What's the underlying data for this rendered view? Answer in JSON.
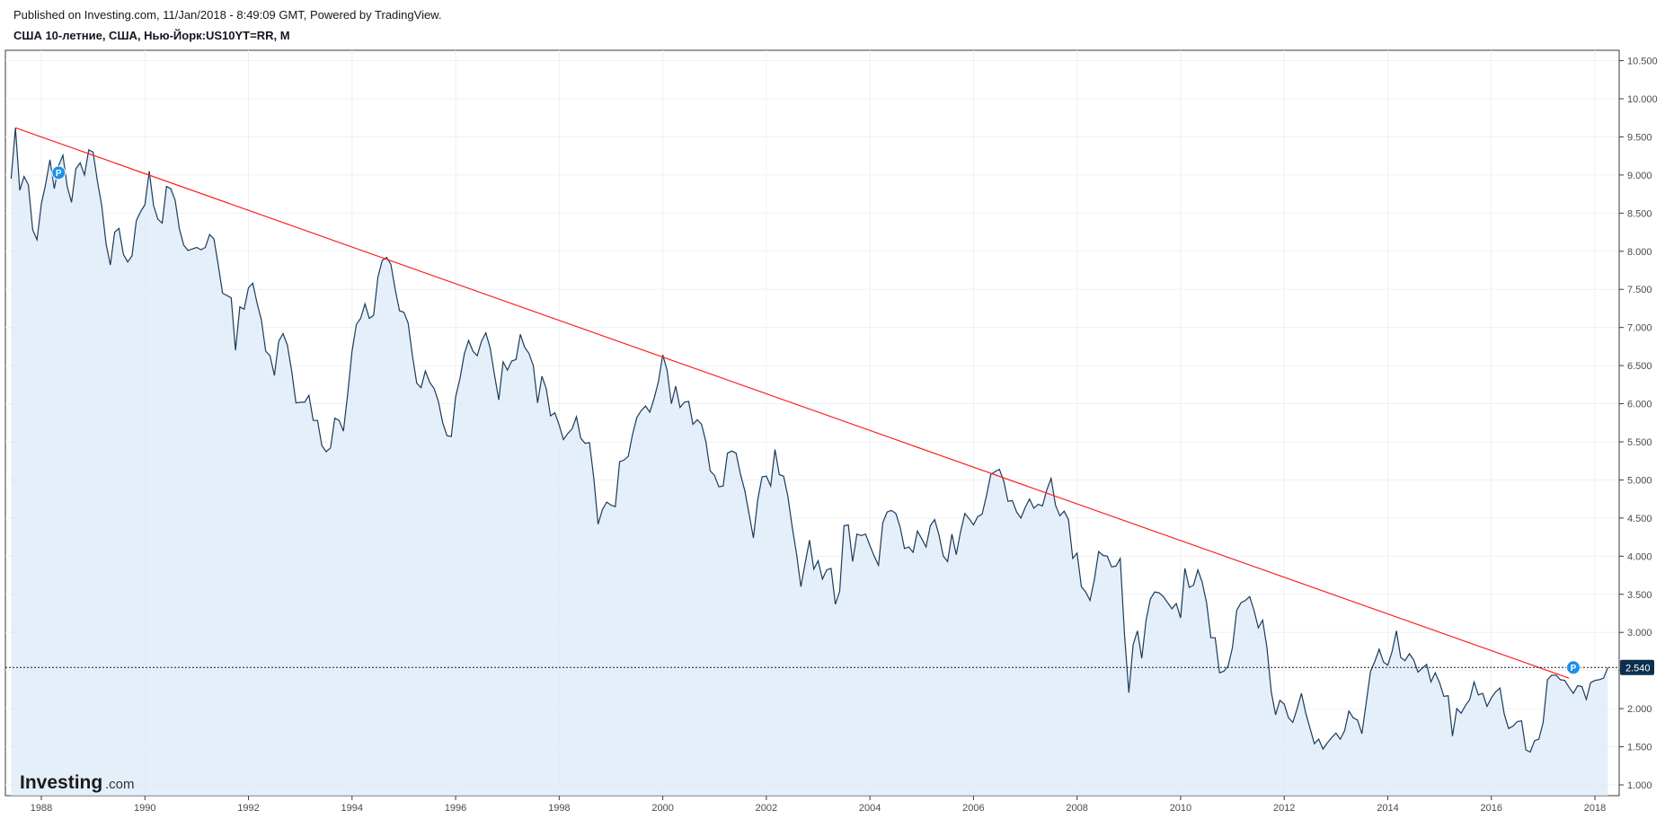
{
  "header": {
    "published": "Published on Investing.com, 11/Jan/2018 - 8:49:09 GMT, Powered by TradingView.",
    "symbol": "США 10-летние, США, Нью-Йорк:US10YT=RR, M"
  },
  "logo": {
    "main": "Investing",
    "sub": ".com"
  },
  "colors": {
    "line": "#1b3b5a",
    "area": "#dce9f7",
    "trendline": "#ff2020",
    "last_price_bg": "#0d2f4f",
    "marker": "#1e90e8"
  },
  "chart_data": {
    "type": "area",
    "series": [
      {
        "values": [
          8.95,
          9.62,
          8.8,
          8.98,
          8.87,
          8.28,
          8.15,
          8.62,
          8.88,
          9.2,
          8.82,
          9.12,
          9.26,
          8.85,
          8.64,
          9.08,
          9.16,
          9.0,
          9.33,
          9.3,
          8.92,
          8.6,
          8.1,
          7.82,
          8.25,
          8.3,
          7.96,
          7.86,
          7.94,
          8.4,
          8.52,
          8.61,
          9.05,
          8.6,
          8.42,
          8.37,
          8.85,
          8.82,
          8.67,
          8.29,
          8.08,
          8.01,
          8.03,
          8.05,
          8.02,
          8.05,
          8.22,
          8.16,
          7.82,
          7.45,
          7.42,
          7.39,
          6.7,
          7.27,
          7.24,
          7.52,
          7.58,
          7.32,
          7.1,
          6.69,
          6.63,
          6.37,
          6.82,
          6.92,
          6.77,
          6.43,
          6.01,
          6.02,
          6.02,
          6.11,
          5.78,
          5.78,
          5.45,
          5.37,
          5.42,
          5.81,
          5.78,
          5.64,
          6.13,
          6.69,
          7.04,
          7.12,
          7.31,
          7.12,
          7.16,
          7.66,
          7.88,
          7.92,
          7.83,
          7.5,
          7.22,
          7.2,
          7.06,
          6.63,
          6.27,
          6.21,
          6.43,
          6.28,
          6.2,
          6.03,
          5.75,
          5.58,
          5.57,
          6.09,
          6.33,
          6.65,
          6.83,
          6.69,
          6.63,
          6.82,
          6.93,
          6.73,
          6.38,
          6.05,
          6.55,
          6.44,
          6.56,
          6.58,
          6.91,
          6.74,
          6.66,
          6.5,
          6.01,
          6.36,
          6.2,
          5.84,
          5.88,
          5.72,
          5.53,
          5.61,
          5.67,
          5.83,
          5.55,
          5.48,
          5.49,
          5.03,
          4.42,
          4.61,
          4.71,
          4.67,
          4.65,
          5.24,
          5.26,
          5.31,
          5.6,
          5.82,
          5.91,
          5.97,
          5.89,
          6.07,
          6.29,
          6.64,
          6.44,
          6.0,
          6.23,
          5.95,
          6.02,
          6.03,
          5.73,
          5.79,
          5.73,
          5.5,
          5.12,
          5.06,
          4.91,
          4.92,
          5.35,
          5.38,
          5.35,
          5.08,
          4.86,
          4.55,
          4.24,
          4.74,
          5.04,
          5.05,
          4.92,
          5.4,
          5.07,
          5.05,
          4.78,
          4.38,
          4.03,
          3.6,
          3.91,
          4.21,
          3.83,
          3.94,
          3.7,
          3.82,
          3.84,
          3.37,
          3.54,
          4.4,
          4.41,
          3.93,
          4.29,
          4.27,
          4.29,
          4.14,
          4.0,
          3.88,
          4.44,
          4.58,
          4.6,
          4.56,
          4.38,
          4.1,
          4.12,
          4.05,
          4.33,
          4.23,
          4.12,
          4.4,
          4.48,
          4.28,
          4.0,
          3.93,
          4.29,
          4.02,
          4.32,
          4.56,
          4.49,
          4.41,
          4.52,
          4.55,
          4.79,
          5.07,
          5.11,
          5.14,
          4.99,
          4.72,
          4.73,
          4.58,
          4.5,
          4.64,
          4.75,
          4.63,
          4.68,
          4.66,
          4.87,
          5.02,
          4.67,
          4.53,
          4.59,
          4.48,
          3.97,
          4.04,
          3.6,
          3.53,
          3.42,
          3.69,
          4.06,
          4.01,
          4.0,
          3.86,
          3.87,
          3.97,
          2.97,
          2.21,
          2.84,
          3.02,
          2.66,
          3.16,
          3.44,
          3.53,
          3.52,
          3.47,
          3.39,
          3.31,
          3.38,
          3.19,
          3.84,
          3.59,
          3.62,
          3.82,
          3.66,
          3.39,
          2.93,
          2.93,
          2.47,
          2.49,
          2.56,
          2.8,
          3.29,
          3.39,
          3.42,
          3.47,
          3.29,
          3.06,
          3.16,
          2.8,
          2.22,
          1.92,
          2.11,
          2.06,
          1.88,
          1.82,
          2.0,
          2.2,
          1.94,
          1.74,
          1.54,
          1.6,
          1.47,
          1.55,
          1.62,
          1.68,
          1.6,
          1.71,
          1.97,
          1.88,
          1.85,
          1.67,
          2.08,
          2.49,
          2.62,
          2.78,
          2.61,
          2.57,
          2.75,
          3.02,
          2.67,
          2.63,
          2.72,
          2.64,
          2.48,
          2.53,
          2.58,
          2.35,
          2.47,
          2.34,
          2.16,
          2.17,
          1.64,
          2.0,
          1.94,
          2.04,
          2.12,
          2.35,
          2.18,
          2.2,
          2.03,
          2.14,
          2.22,
          2.27,
          1.93,
          1.74,
          1.77,
          1.83,
          1.84,
          1.46,
          1.43,
          1.58,
          1.6,
          1.82,
          2.38,
          2.44,
          2.44,
          2.38,
          2.37,
          2.28,
          2.2,
          2.3,
          2.29,
          2.12,
          2.34,
          2.37,
          2.38,
          2.4,
          2.54
        ]
      }
    ],
    "x_start": "1987-06",
    "x_end": "2018-01",
    "frequency": "M",
    "xticks": [
      "1988",
      "1990",
      "1992",
      "1994",
      "1996",
      "1998",
      "2000",
      "2002",
      "2004",
      "2006",
      "2008",
      "2010",
      "2012",
      "2014",
      "2016",
      "2018"
    ],
    "yticks": [
      "1.000",
      "1.500",
      "2.000",
      "2.500",
      "3.000",
      "3.500",
      "4.000",
      "4.500",
      "5.000",
      "5.500",
      "6.000",
      "6.500",
      "7.000",
      "7.500",
      "8.000",
      "8.500",
      "9.000",
      "9.500",
      "10.000",
      "10.500"
    ],
    "ylim": [
      0.85,
      10.6
    ],
    "last_value": "2.540",
    "trendline": {
      "start": [
        "1987-07",
        9.62
      ],
      "end": [
        "2017-07",
        2.4
      ]
    },
    "markers": [
      {
        "date": "1988-05",
        "value": 9.03,
        "label": "P"
      },
      {
        "date": "2017-08",
        "value": 2.54,
        "label": "P"
      }
    ],
    "grid": true,
    "yaxis_position": "right"
  }
}
